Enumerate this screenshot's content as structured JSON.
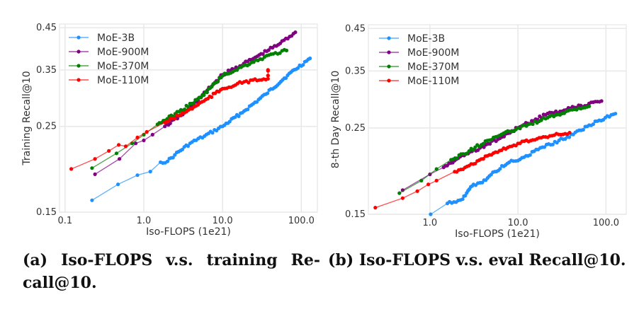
{
  "captions": {
    "a_line1_parts": [
      "(a)",
      "Iso-FLOPS",
      "v.s.",
      "training",
      "Re-"
    ],
    "a_line2": "call@10.",
    "b": "(b) Iso-FLOPS v.s. eval Recall@10."
  },
  "chart_data": [
    {
      "id": "a",
      "type": "line",
      "title": "",
      "xlabel": "Iso-FLOPS (1e21)",
      "ylabel": "Training Recall@10",
      "xscale": "log",
      "yscale": "log",
      "xlim": [
        0.085,
        160
      ],
      "ylim": [
        0.15,
        0.46
      ],
      "xticks": [
        0.1,
        1.0,
        10.0,
        100.0
      ],
      "xtick_labels": [
        "0.1",
        "1.0",
        "10.0",
        "100.0"
      ],
      "yticks": [
        0.15,
        0.25,
        0.35,
        0.45
      ],
      "ytick_labels": [
        "0.15",
        "0.25",
        "0.35",
        "0.45"
      ],
      "grid": true,
      "legend_position": "top-left",
      "series": [
        {
          "name": "MoE-3B",
          "color": "#1e90ff",
          "x": [
            0.22,
            0.47,
            0.83,
            1.21,
            1.63,
            2.0,
            2.48,
            3.86,
            5.9,
            10.0,
            18.8,
            35.5,
            67.0,
            129.0
          ],
          "y": [
            0.161,
            0.177,
            0.187,
            0.191,
            0.202,
            0.203,
            0.211,
            0.226,
            0.236,
            0.25,
            0.274,
            0.303,
            0.339,
            0.375
          ]
        },
        {
          "name": "MoE-900M",
          "color": "#800080",
          "x": [
            0.24,
            0.49,
            0.79,
            1.0,
            1.29,
            1.85,
            3.47,
            4.3,
            10.0,
            23.3,
            54.0,
            84.0
          ],
          "y": [
            0.188,
            0.206,
            0.226,
            0.23,
            0.238,
            0.25,
            0.273,
            0.285,
            0.34,
            0.372,
            0.41,
            0.438
          ]
        },
        {
          "name": "MoE-370M",
          "color": "#008000",
          "x": [
            0.22,
            0.45,
            0.71,
            1.0,
            1.49,
            2.81,
            5.3,
            10.0,
            23.3,
            44.0,
            65.0
          ],
          "y": [
            0.195,
            0.213,
            0.226,
            0.238,
            0.253,
            0.273,
            0.297,
            0.338,
            0.366,
            0.385,
            0.393
          ]
        },
        {
          "name": "MoE-110M",
          "color": "#ff0000",
          "x": [
            0.12,
            0.24,
            0.36,
            0.48,
            0.59,
            0.83,
            1.09,
            1.85,
            3.47,
            6.5,
            10.0,
            18.8,
            37.8,
            37.8
          ],
          "y": [
            0.194,
            0.206,
            0.216,
            0.224,
            0.222,
            0.234,
            0.242,
            0.256,
            0.273,
            0.295,
            0.313,
            0.326,
            0.332,
            0.35
          ]
        }
      ]
    },
    {
      "id": "b",
      "type": "line",
      "title": "",
      "xlabel": "Iso-FLOPS (1e21)",
      "ylabel": "8-th Day Recall@10",
      "xscale": "log",
      "yscale": "log",
      "xlim": [
        0.2,
        170
      ],
      "ylim": [
        0.15,
        0.46
      ],
      "xticks": [
        1.0,
        10.0,
        100.0
      ],
      "xtick_labels": [
        "1.0",
        "10.0",
        "100.0"
      ],
      "yticks": [
        0.15,
        0.25,
        0.35,
        0.45
      ],
      "ytick_labels": [
        "0.15",
        "0.25",
        "0.35",
        "0.45"
      ],
      "grid": true,
      "legend_position": "top-left",
      "series": [
        {
          "name": "MoE-3B",
          "color": "#1e90ff",
          "x": [
            1.02,
            1.58,
            2.35,
            3.13,
            3.94,
            5.44,
            7.95,
            10.0,
            17.0,
            36.4,
            64.5,
            128.0
          ],
          "y": [
            0.15,
            0.16,
            0.164,
            0.179,
            0.181,
            0.193,
            0.204,
            0.206,
            0.22,
            0.237,
            0.254,
            0.272
          ]
        },
        {
          "name": "MoE-900M",
          "color": "#800080",
          "x": [
            0.49,
            1.0,
            1.43,
            2.1,
            3.7,
            6.6,
            10.0,
            20.6,
            44.0,
            89.0
          ],
          "y": [
            0.173,
            0.19,
            0.198,
            0.209,
            0.222,
            0.237,
            0.25,
            0.27,
            0.282,
            0.293
          ]
        },
        {
          "name": "MoE-370M",
          "color": "#008000",
          "x": [
            0.45,
            0.8,
            1.19,
            1.74,
            2.79,
            4.5,
            10.0,
            20.6,
            44.0,
            64.5
          ],
          "y": [
            0.17,
            0.183,
            0.196,
            0.207,
            0.218,
            0.232,
            0.25,
            0.264,
            0.279,
            0.284
          ]
        },
        {
          "name": "MoE-110M",
          "color": "#ff0000",
          "x": [
            0.24,
            0.49,
            0.72,
            0.96,
            1.19,
            1.91,
            2.79,
            4.5,
            10.0,
            20.6,
            38.6
          ],
          "y": [
            0.156,
            0.165,
            0.172,
            0.179,
            0.183,
            0.193,
            0.2,
            0.212,
            0.228,
            0.237,
            0.243
          ]
        }
      ]
    }
  ]
}
